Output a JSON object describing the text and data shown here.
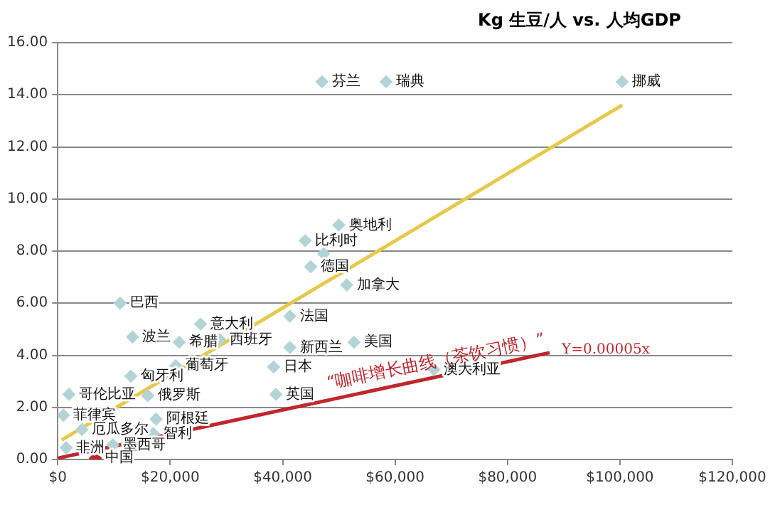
{
  "chart_data": {
    "type": "scatter",
    "title": "Kg 生豆/人 vs. 人均GDP",
    "series": [
      {
        "type": "scatter",
        "color": "#b3d4d6",
        "x": [
          47000,
          58400,
          100400,
          44000,
          50000,
          47300,
          45000,
          51400,
          41300,
          25400,
          28800,
          52700,
          41300,
          38400,
          38800,
          66900,
          11100,
          13300,
          21600,
          13000,
          21000,
          2000,
          16000,
          1000,
          4300,
          17500,
          17000,
          9800,
          1500
        ],
        "values": [
          14.5,
          14.5,
          14.5,
          8.4,
          9.0,
          7.9,
          7.4,
          6.7,
          5.5,
          5.2,
          4.6,
          4.5,
          4.3,
          3.55,
          2.5,
          3.45,
          6.0,
          4.7,
          4.5,
          3.2,
          3.6,
          2.5,
          2.45,
          1.7,
          1.15,
          1.55,
          1.0,
          0.56,
          0.45
        ]
      },
      {
        "type": "scatter",
        "color": "#c0272d",
        "x": [
          6700
        ],
        "values": [
          0.05
        ]
      },
      {
        "type": "line",
        "color": "#e6c84a",
        "marker": "none",
        "x": [
          700,
          100400
        ],
        "values": [
          0.75,
          13.6
        ]
      },
      {
        "type": "line",
        "color": "#c0272d",
        "marker": "none",
        "x": [
          0,
          87500
        ],
        "values": [
          0.05,
          4.1
        ]
      }
    ],
    "marker": "diamond",
    "xlim": [
      0,
      120000
    ],
    "ylim": [
      0,
      16
    ],
    "xticks": [
      {
        "value": 0,
        "label": "$0"
      },
      {
        "value": 20000,
        "label": "$20,000"
      },
      {
        "value": 40000,
        "label": "$40,000"
      },
      {
        "value": 60000,
        "label": "$60,000"
      },
      {
        "value": 80000,
        "label": "$80,000"
      },
      {
        "value": 100000,
        "label": "$100,000"
      },
      {
        "value": 120000,
        "label": "$120,000"
      }
    ],
    "yticks": [
      {
        "value": 0,
        "label": "0.00"
      },
      {
        "value": 2,
        "label": "2.00"
      },
      {
        "value": 4,
        "label": "4.00"
      },
      {
        "value": 6,
        "label": "6.00"
      },
      {
        "value": 8,
        "label": "8.00"
      },
      {
        "value": 10,
        "label": "10.00"
      },
      {
        "value": 12,
        "label": "12.00"
      },
      {
        "value": 14,
        "label": "14.00"
      },
      {
        "value": 16,
        "label": "16.00"
      }
    ],
    "grid": "y",
    "legend": false,
    "annotations": [
      {
        "text": "芬兰",
        "x": 47000,
        "y": 14.5
      },
      {
        "text": "瑞典",
        "x": 58400,
        "y": 14.5
      },
      {
        "text": "挪威",
        "x": 100400,
        "y": 14.5
      },
      {
        "text": "比利时",
        "x": 44000,
        "y": 8.4
      },
      {
        "text": "奥地利",
        "x": 50000,
        "y": 9.0
      },
      {
        "text": "德国",
        "x": 45000,
        "y": 7.4
      },
      {
        "text": "加拿大",
        "x": 51400,
        "y": 6.7
      },
      {
        "text": "法国",
        "x": 41300,
        "y": 5.5
      },
      {
        "text": "意大利",
        "x": 25400,
        "y": 5.2
      },
      {
        "text": "西班牙",
        "x": 28800,
        "y": 4.6
      },
      {
        "text": "美国",
        "x": 52700,
        "y": 4.5
      },
      {
        "text": "新西兰",
        "x": 41300,
        "y": 4.3
      },
      {
        "text": "日本",
        "x": 38400,
        "y": 3.55
      },
      {
        "text": "英国",
        "x": 38800,
        "y": 2.5
      },
      {
        "text": "澳大利亚",
        "x": 66900,
        "y": 3.45
      },
      {
        "text": "巴西",
        "x": 11100,
        "y": 6.0
      },
      {
        "text": "波兰",
        "x": 13300,
        "y": 4.7
      },
      {
        "text": "希腊",
        "x": 21600,
        "y": 4.5
      },
      {
        "text": "匈牙利",
        "x": 13000,
        "y": 3.2
      },
      {
        "text": "葡萄牙",
        "x": 21000,
        "y": 3.6
      },
      {
        "text": "哥伦比亚",
        "x": 2000,
        "y": 2.5
      },
      {
        "text": "俄罗斯",
        "x": 16000,
        "y": 2.45
      },
      {
        "text": "菲律宾",
        "x": 1000,
        "y": 1.7
      },
      {
        "text": "厄瓜多尔",
        "x": 4300,
        "y": 1.15
      },
      {
        "text": "阿根廷",
        "x": 17500,
        "y": 1.55
      },
      {
        "text": "智利",
        "x": 17000,
        "y": 1.0
      },
      {
        "text": "墨西哥",
        "x": 9800,
        "y": 0.56
      },
      {
        "text": "非洲",
        "x": 1500,
        "y": 0.45
      },
      {
        "text": "中国",
        "x": 6700,
        "y": 0.05
      },
      "“咖啡增长曲线（茶饮习惯）”",
      "Y=0.00005x"
    ]
  }
}
